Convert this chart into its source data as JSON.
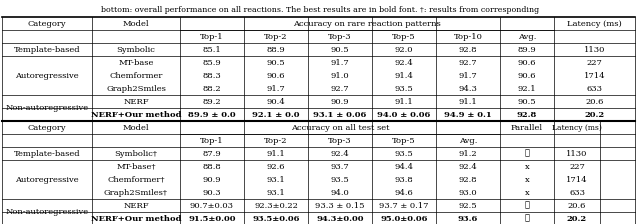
{
  "caption": "bottom: overall performance on all reactions. The best results are in bold font. †: results from corresponding",
  "table1": {
    "header_main": "Accuracy on rare reaction patterns",
    "sub_headers": [
      "Top-1",
      "Top-2",
      "Top-3",
      "Top-5",
      "Top-10",
      "Avg."
    ],
    "col_headers": [
      "Category",
      "Model",
      "Top-1",
      "Top-2",
      "Top-3",
      "Top-5",
      "Top-10",
      "Avg.",
      "Latency (ms)"
    ],
    "data_rows": [
      [
        "Template-based",
        "Symbolic",
        "85.1",
        "88.9",
        "90.5",
        "92.0",
        "92.8",
        "89.9",
        "1130",
        false
      ],
      [
        "Autoregressive",
        "MT-base",
        "85.9",
        "90.5",
        "91.7",
        "92.4",
        "92.7",
        "90.6",
        "227",
        false
      ],
      [
        "Autoregressive",
        "Chemformer",
        "88.3",
        "90.6",
        "91.0",
        "91.4",
        "91.7",
        "90.6",
        "1714",
        false
      ],
      [
        "Autoregressive",
        "Graph2Smiles",
        "88.2",
        "91.7",
        "92.7",
        "93.5",
        "94.3",
        "92.1",
        "633",
        false
      ],
      [
        "Non-autoregressive",
        "NERF",
        "89.2",
        "90.4",
        "90.9",
        "91.1",
        "91.1",
        "90.5",
        "20.6",
        false
      ],
      [
        "Non-autoregressive",
        "NERF+Our method",
        "89.9 ± 0.0",
        "92.1 ± 0.0",
        "93.1 ± 0.06",
        "94.0 ± 0.06",
        "94.9 ± 0.1",
        "92.8",
        "20.2",
        true
      ]
    ],
    "cat_spans": [
      [
        "Template-based",
        0,
        1
      ],
      [
        "Autoregressive",
        1,
        4
      ],
      [
        "Non-autoregressive",
        4,
        6
      ]
    ]
  },
  "table2": {
    "header_main": "Accuracy on all test set",
    "sub_headers": [
      "Top-1",
      "Top-2",
      "Top-3",
      "Top-5",
      "Avg."
    ],
    "data_rows": [
      [
        "Template-based",
        "Symbolic†",
        "87.9",
        "91.1",
        "92.4",
        "93.5",
        "91.2",
        "✓",
        "1130",
        false
      ],
      [
        "Autoregressive",
        "MT-base†",
        "88.8",
        "92.6",
        "93.7",
        "94.4",
        "92.4",
        "x",
        "227",
        false
      ],
      [
        "Autoregressive",
        "Chemformer†",
        "90.9",
        "93.1",
        "93.5",
        "93.8",
        "92.8",
        "x",
        "1714",
        false
      ],
      [
        "Autoregressive",
        "Graph2Smiles†",
        "90.3",
        "93.1",
        "94.0",
        "94.6",
        "93.0",
        "x",
        "633",
        false
      ],
      [
        "Non-autoregressive",
        "NERF",
        "90.7±0.03",
        "92.3±0.22",
        "93.3 ± 0.15",
        "93.7 ± 0.17",
        "92.5",
        "✓",
        "20.6",
        false
      ],
      [
        "Non-autoregressive",
        "NERF+Our method",
        "91.5±0.00",
        "93.5±0.06",
        "94.3±0.00",
        "95.0±0.06",
        "93.6",
        "✓",
        "20.2",
        true
      ]
    ],
    "cat_spans": [
      [
        "Template-based",
        0,
        1
      ],
      [
        "Autoregressive",
        1,
        4
      ],
      [
        "Non-autoregressive",
        4,
        6
      ]
    ]
  },
  "bg_color": "#ffffff",
  "text_color": "#000000",
  "fontsize": 6.0
}
